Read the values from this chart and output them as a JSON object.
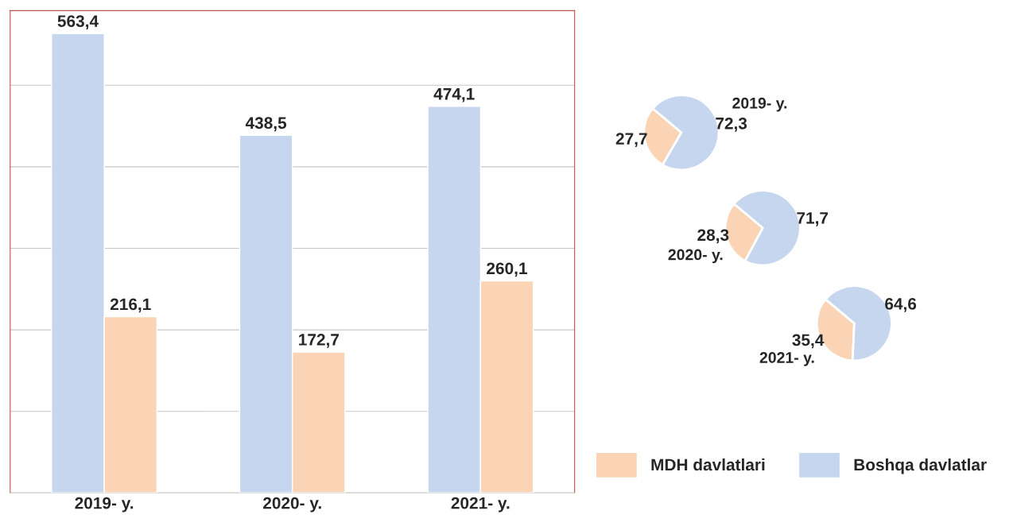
{
  "chart_data": [
    {
      "type": "bar",
      "categories": [
        "2019- y.",
        "2020- y.",
        "2021- y."
      ],
      "series": [
        {
          "name": "Boshqa davlatlar",
          "color": "#c6d6ef",
          "values": [
            563.4,
            438.5,
            474.1
          ],
          "value_labels": [
            "563,4",
            "438,5",
            "474,1"
          ]
        },
        {
          "name": "MDH davlatlari",
          "color": "#fad4b4",
          "values": [
            216.1,
            172.7,
            260.1
          ],
          "value_labels": [
            "216,1",
            "172,7",
            "260,1"
          ]
        }
      ],
      "grid": "y",
      "tick_labels": "x",
      "legend": "bottom right"
    },
    {
      "type": "pie",
      "title": "2019- y.",
      "categories": [
        null,
        null
      ],
      "values": [
        27.7,
        72.3
      ],
      "value_labels": [
        "27,7",
        "72,3"
      ],
      "colors": [
        "#fad4b4",
        "#c6d6ef"
      ]
    },
    {
      "type": "pie",
      "title": "2020- y.",
      "categories": [
        null,
        null
      ],
      "values": [
        28.3,
        71.7
      ],
      "value_labels": [
        "28,3",
        "71,7"
      ],
      "colors": [
        "#fad4b4",
        "#c6d6ef"
      ]
    },
    {
      "type": "pie",
      "title": "2021- y.",
      "categories": [
        null,
        null
      ],
      "values": [
        35.4,
        64.6
      ],
      "value_labels": [
        "35,4",
        "64,6"
      ],
      "colors": [
        "#fad4b4",
        "#c6d6ef"
      ]
    }
  ]
}
